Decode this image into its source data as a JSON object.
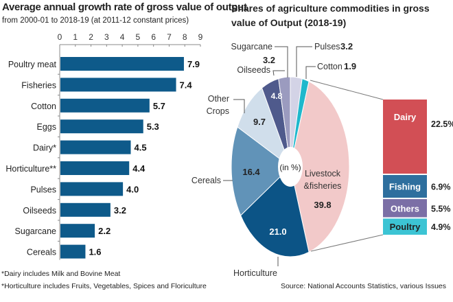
{
  "chart_data": [
    {
      "type": "bar",
      "orientation": "horizontal",
      "title": "Average annual growth rate of gross value of output",
      "subtitle": "from 2000-01 to 2018-19 (at 2011-12 constant prices)",
      "categories": [
        "Poultry meat",
        "Fisheries",
        "Cotton",
        "Eggs",
        "Dairy*",
        "Horticulture**",
        "Pulses",
        "Oilseeds",
        "Sugarcane",
        "Cereals"
      ],
      "values": [
        7.9,
        7.4,
        5.7,
        5.3,
        4.5,
        4.4,
        4.0,
        3.2,
        2.2,
        1.6
      ],
      "value_labels": [
        "7.9",
        "7.4",
        "5.7",
        "5.3",
        "4.5",
        "4.4",
        "4.0",
        "3.2",
        "2.2",
        "1.6"
      ],
      "xlim": [
        0,
        9
      ],
      "xticks": [
        "0",
        "1",
        "2",
        "3",
        "4",
        "5",
        "6",
        "7",
        "8",
        "9"
      ],
      "axis_position": "top",
      "grid": false,
      "color": "#0e5a8a"
    },
    {
      "type": "pie",
      "title": "Shares of agriculture commodities in gross value of Output (2018-19)",
      "center_label": "(in %)",
      "slices": [
        {
          "name": "Pulses",
          "value": 3.2,
          "label": "3.2",
          "color": "#d3d3e6"
        },
        {
          "name": "Cotton",
          "value": 1.9,
          "label": "1.9",
          "color": "#1fb8cc"
        },
        {
          "name": "Livestock &fisheries",
          "value": 39.8,
          "label": "39.8",
          "color": "#f2c9c9"
        },
        {
          "name": "Horticulture",
          "value": 21.0,
          "label": "21.0",
          "color": "#0c5486"
        },
        {
          "name": "Cereals",
          "value": 16.4,
          "label": "16.4",
          "color": "#6193b8"
        },
        {
          "name": "Other Crops",
          "value": 9.7,
          "label": "9.7",
          "color": "#d0deeb"
        },
        {
          "name": "Oilseeds",
          "value": 4.8,
          "label": "4.8",
          "color": "#4f5a8c"
        },
        {
          "name": "Sugarcane",
          "value": 3.2,
          "label": "3.2",
          "color": "#9b9bbf"
        }
      ],
      "breakdown": {
        "of": "Livestock &fisheries",
        "type": "stacked-bar",
        "items": [
          {
            "name": "Dairy",
            "value": 22.5,
            "label": "22.5%",
            "color": "#d24f55"
          },
          {
            "name": "Fishing",
            "value": 6.9,
            "label": "6.9%",
            "color": "#2e6f9e"
          },
          {
            "name": "Others",
            "value": 5.5,
            "label": "5.5%",
            "color": "#7b6fa6"
          },
          {
            "name": "Poultry",
            "value": 4.9,
            "label": "4.9%",
            "color": "#3cc4d4"
          }
        ]
      }
    }
  ],
  "footnotes": [
    "*Dairy includes Milk and Bovine Meat",
    "*Horticulture includes Fruits, Vegetables, Spices and Floriculture"
  ],
  "source": "Source: National Accounts Statistics, various Issues"
}
